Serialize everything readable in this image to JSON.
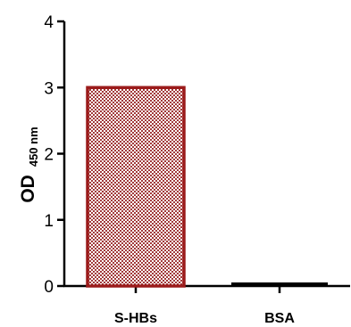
{
  "chart_data": {
    "type": "bar",
    "title": "",
    "categories": [
      "S-HBs",
      "BSA"
    ],
    "values": [
      3.0,
      0.05
    ],
    "ylabel": "OD",
    "ylabel_subscript": "450 nm",
    "xlabel": "",
    "ylim": [
      0,
      4
    ],
    "yticks": [
      "0",
      "1",
      "2",
      "3",
      "4"
    ],
    "grid": false,
    "legend": "none",
    "colors": {
      "s_hbs_outline": "#9b1b1b",
      "s_hbs_pattern": "#a13a3a",
      "bsa_fill": "#000000",
      "axis": "#000000"
    }
  }
}
